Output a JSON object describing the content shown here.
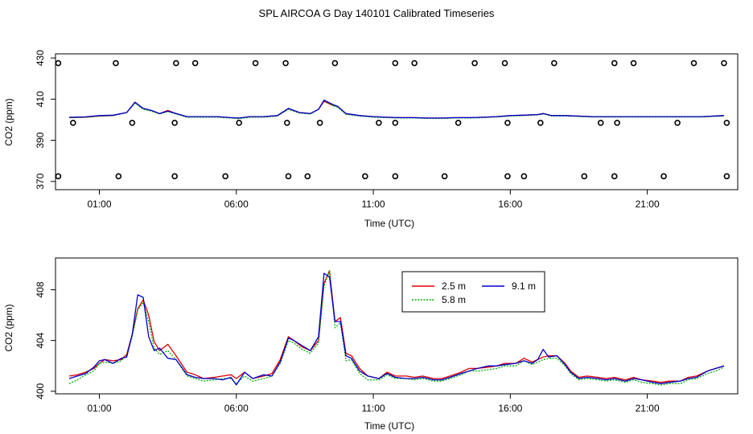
{
  "figure_title": "SPL AIRCOA G  Day 140101  Calibrated Timeseries",
  "colors": {
    "s25": "#e00000",
    "s58": "#00b000",
    "s91": "#0000cc",
    "axis": "#000000"
  },
  "chart_data": [
    {
      "type": "line+scatter",
      "title": "SPL AIRCOA G  Day 140101  Calibrated Timeseries",
      "xlabel": "Time (UTC)",
      "ylabel": "CO2 (ppm)",
      "xlim": [
        -0.6,
        24.3
      ],
      "ylim": [
        366,
        432
      ],
      "xticks": [
        1,
        6,
        11,
        16,
        21
      ],
      "xtick_labels": [
        "01:00",
        "06:00",
        "11:00",
        "16:00",
        "21:00"
      ],
      "yticks": [
        370,
        390,
        410,
        430
      ],
      "ytick_labels": [
        "370",
        "390",
        "410",
        "430"
      ],
      "series": [
        {
          "name": "2.5 m",
          "color": "#e00000",
          "dash": "",
          "x": [
            -0.1,
            0.5,
            1,
            1.5,
            2,
            2.3,
            2.6,
            2.9,
            3.2,
            3.5,
            3.8,
            4.2,
            4.8,
            5.3,
            5.8,
            6.1,
            6.5,
            7,
            7.5,
            7.9,
            8.3,
            8.7,
            9,
            9.2,
            9.5,
            9.7,
            10,
            10.5,
            11,
            11.5,
            12,
            12.5,
            13,
            13.5,
            14,
            14.5,
            15,
            15.5,
            16,
            16.5,
            17,
            17.2,
            17.5,
            18,
            19,
            20,
            21,
            22,
            23,
            23.8
          ],
          "y": [
            401,
            401.2,
            401.8,
            402,
            403.5,
            408.5,
            405.5,
            404.5,
            403,
            404.5,
            403,
            401.5,
            401.5,
            401.5,
            401,
            400.8,
            401.5,
            401.5,
            402,
            405.5,
            403.5,
            403,
            405,
            409,
            407,
            406.5,
            403,
            402,
            401.5,
            401.2,
            401,
            401,
            400.8,
            400.8,
            401,
            401,
            401.2,
            401.5,
            402,
            402.2,
            402.5,
            403,
            402,
            402,
            401.5,
            401.5,
            401.5,
            401.5,
            401.5,
            402
          ]
        },
        {
          "name": "5.8 m",
          "color": "#00b000",
          "dash": "2,1.6",
          "x": [
            -0.1,
            0.5,
            1,
            1.5,
            2,
            2.3,
            2.6,
            2.9,
            3.2,
            3.5,
            3.8,
            4.2,
            4.8,
            5.3,
            5.8,
            6.1,
            6.5,
            7,
            7.5,
            7.9,
            8.3,
            8.7,
            9,
            9.2,
            9.5,
            9.7,
            10,
            10.5,
            11,
            11.5,
            12,
            12.5,
            13,
            13.5,
            14,
            14.5,
            15,
            15.5,
            16,
            16.5,
            17,
            17.2,
            17.5,
            18,
            19,
            20,
            21,
            22,
            23,
            23.8
          ],
          "y": [
            401,
            401.2,
            401.8,
            402,
            403.5,
            408,
            405,
            404.2,
            402.8,
            404,
            402.8,
            401.2,
            401.2,
            401.2,
            400.8,
            400.5,
            401.2,
            401.2,
            401.8,
            405,
            403.2,
            402.8,
            405,
            409.5,
            407,
            406,
            402.6,
            401.8,
            401.2,
            401,
            400.8,
            400.8,
            400.6,
            400.6,
            400.8,
            400.8,
            401,
            401.3,
            401.8,
            402,
            402.3,
            402.8,
            401.8,
            401.8,
            401.3,
            401.3,
            401.3,
            401.3,
            401.3,
            401.8
          ]
        },
        {
          "name": "9.1 m",
          "color": "#0000cc",
          "dash": "",
          "x": [
            -0.1,
            0.5,
            1,
            1.5,
            2,
            2.3,
            2.6,
            2.9,
            3.2,
            3.5,
            3.8,
            4.2,
            4.8,
            5.3,
            5.8,
            6.1,
            6.5,
            7,
            7.5,
            7.9,
            8.3,
            8.7,
            9,
            9.2,
            9.5,
            9.7,
            10,
            10.5,
            11,
            11.5,
            12,
            12.5,
            13,
            13.5,
            14,
            14.5,
            15,
            15.5,
            16,
            16.5,
            17,
            17.2,
            17.5,
            18,
            19,
            20,
            21,
            22,
            23,
            23.8
          ],
          "y": [
            401.2,
            401.4,
            402,
            402.2,
            403.5,
            408.5,
            405.5,
            404.5,
            403,
            404.2,
            403,
            401.5,
            401.5,
            401.5,
            401,
            400.8,
            401.5,
            401.5,
            402,
            405.5,
            403.5,
            403,
            405,
            409.5,
            407.5,
            406.5,
            403,
            402,
            401.5,
            401.2,
            401,
            401,
            400.8,
            400.8,
            401,
            401,
            401.2,
            401.5,
            402,
            402.2,
            402.5,
            403,
            402,
            402,
            401.5,
            401.5,
            401.5,
            401.5,
            401.5,
            402
          ]
        },
        {
          "name": "circles",
          "color": "#000000",
          "marker": "circle",
          "x": [
            -0.5,
            1.6,
            3.8,
            4.5,
            6.7,
            7.8,
            9.6,
            11.8,
            12.5,
            14.7,
            15.8,
            17.6,
            19.8,
            20.5,
            22.7,
            23.8,
            0.04,
            2.2,
            3.75,
            6.1,
            7.85,
            9.05,
            11.2,
            11.8,
            14.1,
            15.9,
            17.1,
            19.3,
            19.9,
            22.1,
            23.9,
            -0.5,
            1.7,
            3.75,
            5.6,
            7.9,
            8.6,
            10.7,
            11.8,
            13.6,
            15.9,
            16.5,
            18.7,
            19.8,
            21.6,
            23.9
          ],
          "y": [
            427.5,
            427.5,
            427.5,
            427.5,
            427.5,
            427.5,
            427.5,
            427.5,
            427.5,
            427.5,
            427.5,
            427.5,
            427.5,
            427.5,
            427.5,
            427.5,
            398.5,
            398.5,
            398.5,
            398.5,
            398.5,
            398.5,
            398.5,
            398.5,
            398.5,
            398.5,
            398.5,
            398.5,
            398.5,
            398.5,
            398.5,
            372.5,
            372.5,
            372.5,
            372.5,
            372.5,
            372.5,
            372.5,
            372.5,
            372.5,
            372.5,
            372.5,
            372.5,
            372.5,
            372.5,
            372.5
          ]
        }
      ]
    },
    {
      "type": "line",
      "xlabel": "Time (UTC)",
      "ylabel": "CO2 (ppm)",
      "xlim": [
        -0.6,
        24.3
      ],
      "ylim": [
        399.8,
        410.5
      ],
      "xticks": [
        1,
        6,
        11,
        16,
        21
      ],
      "xtick_labels": [
        "01:00",
        "06:00",
        "11:00",
        "16:00",
        "21:00"
      ],
      "yticks": [
        400,
        404,
        408
      ],
      "ytick_labels": [
        "400",
        "404",
        "408"
      ],
      "legend": {
        "position": "top-center",
        "entries": [
          "2.5 m",
          "5.8 m",
          "9.1 m"
        ]
      },
      "series": [
        {
          "name": "2.5 m",
          "color": "#e00000",
          "dash": "",
          "x": [
            -0.1,
            0.2,
            0.5,
            0.8,
            1,
            1.2,
            1.5,
            1.8,
            2,
            2.2,
            2.4,
            2.6,
            2.8,
            3,
            3.2,
            3.5,
            3.8,
            4.2,
            4.5,
            4.8,
            5.2,
            5.5,
            5.8,
            6,
            6.3,
            6.6,
            7,
            7.3,
            7.6,
            7.9,
            8.1,
            8.4,
            8.7,
            9,
            9.2,
            9.4,
            9.6,
            9.8,
            10,
            10.2,
            10.5,
            10.8,
            11.2,
            11.5,
            11.8,
            12.2,
            12.5,
            12.8,
            13.2,
            13.5,
            13.8,
            14.2,
            14.5,
            14.8,
            15.2,
            15.5,
            15.8,
            16.2,
            16.5,
            16.8,
            17,
            17.2,
            17.4,
            17.7,
            18,
            18.2,
            18.5,
            18.8,
            19.2,
            19.5,
            19.8,
            20.2,
            20.5,
            20.8,
            21.2,
            21.5,
            21.8,
            22.2,
            22.5,
            22.8,
            23.2,
            23.5,
            23.8
          ],
          "y": [
            401.2,
            401.3,
            401.5,
            401.8,
            402.2,
            402.5,
            402.4,
            402.5,
            402.9,
            404.5,
            406.5,
            407.2,
            406,
            403.9,
            403.2,
            403.7,
            402.8,
            401.5,
            401.3,
            401,
            401.1,
            401.2,
            401.3,
            401,
            401.5,
            401,
            401.2,
            401.4,
            402.5,
            404.3,
            404,
            403.5,
            403.2,
            404,
            408.5,
            409.5,
            405.5,
            405.8,
            403,
            402.8,
            401.8,
            401.2,
            401,
            401.5,
            401.2,
            401.2,
            401.1,
            401.2,
            401,
            401,
            401.2,
            401.5,
            401.8,
            401.8,
            401.9,
            402,
            402.2,
            402.2,
            402.6,
            402.3,
            402.5,
            402.7,
            402.8,
            402.8,
            402.2,
            401.6,
            401.1,
            401.2,
            401.1,
            401,
            401.1,
            400.9,
            401.1,
            400.9,
            400.8,
            400.7,
            400.8,
            400.8,
            401.1,
            401.2,
            401.6,
            401.8,
            402
          ]
        },
        {
          "name": "5.8 m",
          "color": "#00b000",
          "dash": "2,1.6",
          "x": [
            -0.1,
            0.2,
            0.5,
            0.8,
            1,
            1.2,
            1.5,
            1.8,
            2,
            2.2,
            2.4,
            2.6,
            2.8,
            3,
            3.2,
            3.5,
            3.8,
            4.2,
            4.5,
            4.8,
            5.2,
            5.5,
            5.8,
            6,
            6.3,
            6.6,
            7,
            7.3,
            7.6,
            7.9,
            8.1,
            8.4,
            8.7,
            9,
            9.2,
            9.4,
            9.6,
            9.8,
            10,
            10.2,
            10.5,
            10.8,
            11.2,
            11.5,
            11.8,
            12.2,
            12.5,
            12.8,
            13.2,
            13.5,
            13.8,
            14.2,
            14.5,
            14.8,
            15.2,
            15.5,
            15.8,
            16.2,
            16.5,
            16.8,
            17,
            17.2,
            17.4,
            17.7,
            18,
            18.2,
            18.5,
            18.8,
            19.2,
            19.5,
            19.8,
            20.2,
            20.5,
            20.8,
            21.2,
            21.5,
            21.8,
            22.2,
            22.5,
            22.8,
            23.2,
            23.5,
            23.8
          ],
          "y": [
            400.6,
            400.9,
            401.3,
            401.6,
            402.2,
            402.3,
            402.2,
            402.4,
            402.8,
            404.3,
            406.4,
            407,
            405.5,
            403.4,
            402.9,
            403.2,
            402.5,
            401.2,
            401,
            400.8,
            400.9,
            401,
            401,
            400.6,
            401.2,
            400.8,
            401,
            401.2,
            402.2,
            404,
            403.8,
            403.3,
            403,
            403.8,
            408.3,
            409.5,
            405,
            405.4,
            402.4,
            402.5,
            401.4,
            400.9,
            400.9,
            401.3,
            401,
            401,
            400.9,
            401,
            400.8,
            400.8,
            401,
            401.3,
            401.6,
            401.6,
            401.7,
            401.8,
            402,
            402,
            402.4,
            402.1,
            402.3,
            402.5,
            402.6,
            402.6,
            402,
            401.4,
            400.9,
            401,
            400.9,
            400.8,
            400.9,
            400.7,
            400.9,
            400.7,
            400.6,
            400.5,
            400.6,
            400.6,
            400.9,
            401,
            401.4,
            401.6,
            401.9
          ]
        },
        {
          "name": "9.1 m",
          "color": "#0000cc",
          "dash": "",
          "x": [
            -0.1,
            0.2,
            0.5,
            0.8,
            1,
            1.2,
            1.5,
            1.8,
            2,
            2.2,
            2.4,
            2.6,
            2.8,
            3,
            3.2,
            3.5,
            3.8,
            4.2,
            4.5,
            4.8,
            5.2,
            5.5,
            5.8,
            6,
            6.3,
            6.6,
            7,
            7.3,
            7.6,
            7.9,
            8.1,
            8.4,
            8.7,
            9,
            9.2,
            9.4,
            9.6,
            9.8,
            10,
            10.2,
            10.5,
            10.8,
            11.2,
            11.5,
            11.8,
            12.2,
            12.5,
            12.8,
            13.2,
            13.5,
            13.8,
            14.2,
            14.5,
            14.8,
            15.2,
            15.5,
            15.8,
            16.2,
            16.5,
            16.8,
            17,
            17.2,
            17.4,
            17.7,
            18,
            18.2,
            18.5,
            18.8,
            19.2,
            19.5,
            19.8,
            20.2,
            20.5,
            20.8,
            21.2,
            21.5,
            21.8,
            22.2,
            22.5,
            22.8,
            23.2,
            23.5,
            23.8
          ],
          "y": [
            401,
            401.2,
            401.4,
            401.9,
            402.4,
            402.5,
            402.2,
            402.6,
            402.7,
            404.5,
            407.6,
            407.4,
            404.3,
            403.2,
            403.4,
            402.6,
            402.5,
            401.3,
            401.1,
            401,
            401,
            400.9,
            401.1,
            400.5,
            401.5,
            401,
            401.3,
            401.2,
            402.3,
            404.2,
            404,
            403.6,
            403.2,
            404.3,
            409.3,
            409,
            405.5,
            405.5,
            402.8,
            402.6,
            401.6,
            401.2,
            401,
            401.4,
            401.1,
            401,
            401,
            401.1,
            400.9,
            400.9,
            401.1,
            401.4,
            401.6,
            401.8,
            402,
            402,
            402.1,
            402.2,
            402.4,
            402.2,
            402.5,
            403.3,
            402.7,
            402.8,
            402.1,
            401.5,
            401,
            401.1,
            401,
            400.9,
            401,
            400.8,
            401,
            400.9,
            400.7,
            400.6,
            400.7,
            400.8,
            401,
            401.1,
            401.6,
            401.8,
            402
          ]
        }
      ]
    }
  ]
}
